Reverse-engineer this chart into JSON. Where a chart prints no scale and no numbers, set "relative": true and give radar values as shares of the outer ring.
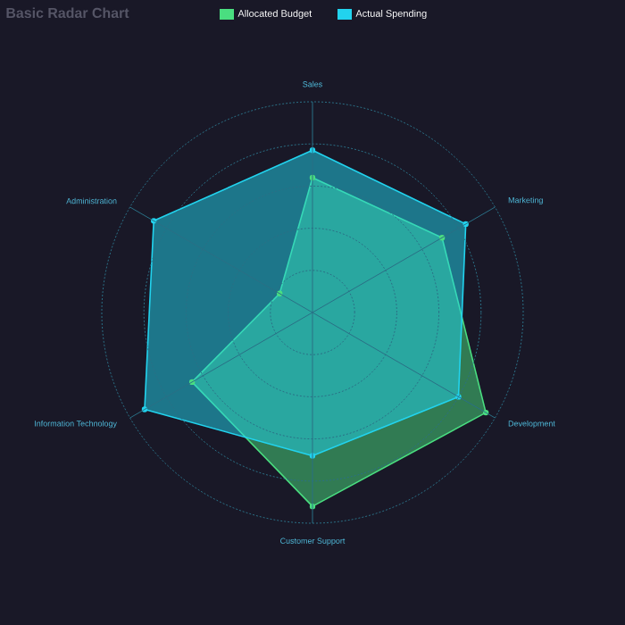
{
  "chart_data": {
    "type": "radar",
    "title": "Basic Radar Chart",
    "categories": [
      "Sales",
      "Marketing",
      "Development",
      "Customer Support",
      "Information Technology",
      "Administration"
    ],
    "series": [
      {
        "name": "Allocated Budget",
        "color": "#4ade80",
        "values": [
          0.64,
          0.71,
          0.95,
          0.92,
          0.66,
          0.18
        ]
      },
      {
        "name": "Actual Spending",
        "color": "#22d3ee",
        "values": [
          0.77,
          0.84,
          0.8,
          0.68,
          0.92,
          0.87
        ]
      }
    ],
    "relative": true,
    "legend": "top",
    "marker": "circle"
  }
}
